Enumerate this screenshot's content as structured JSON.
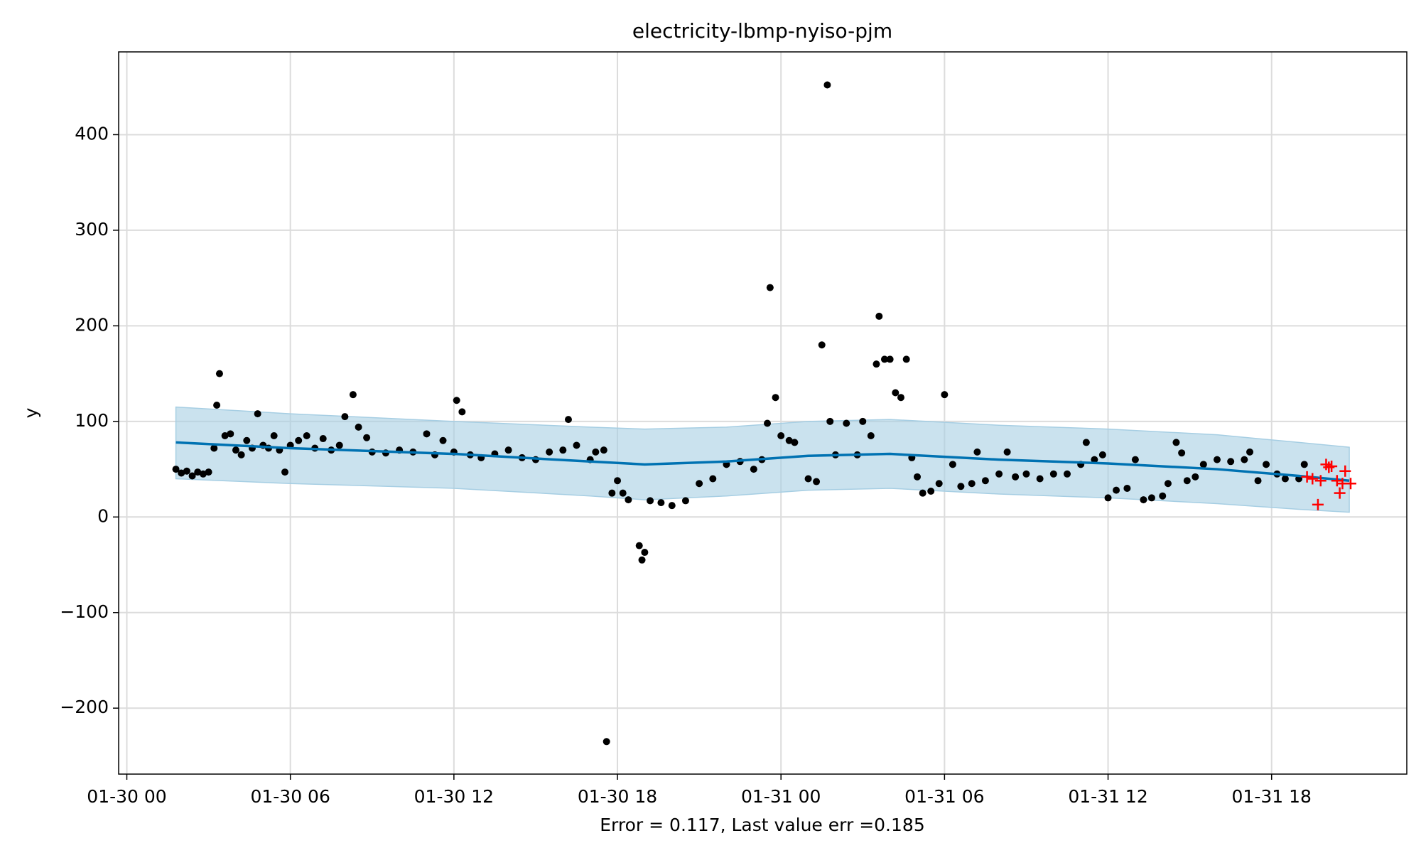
{
  "chart_data": {
    "type": "scatter",
    "title": "electricity-lbmp-nyiso-pjm",
    "xlabel": "Error = 0.117, Last value err =0.185",
    "ylabel": "y",
    "grid": true,
    "xlim": [
      -0.3,
      46.96
    ],
    "ylim": [
      -269,
      486.6
    ],
    "xticks": [
      {
        "value": 0,
        "label": "01-30 00"
      },
      {
        "value": 6,
        "label": "01-30 06"
      },
      {
        "value": 12,
        "label": "01-30 12"
      },
      {
        "value": 18,
        "label": "01-30 18"
      },
      {
        "value": 24,
        "label": "01-31 00"
      },
      {
        "value": 30,
        "label": "01-31 06"
      },
      {
        "value": 36,
        "label": "01-31 12"
      },
      {
        "value": 42,
        "label": "01-31 18"
      }
    ],
    "yticks": [
      {
        "value": -200,
        "label": "−200"
      },
      {
        "value": -100,
        "label": "−100"
      },
      0,
      100,
      200,
      300,
      400
    ],
    "interval": {
      "color": "#a6cee3",
      "x": [
        1.8,
        6,
        12,
        17,
        19,
        22,
        25,
        28,
        32,
        36,
        40,
        43,
        44.85
      ],
      "upper": [
        115,
        108,
        100,
        94,
        92,
        94,
        100,
        102,
        96,
        92,
        86,
        78,
        73
      ],
      "lower": [
        40,
        35,
        30,
        22,
        18,
        22,
        28,
        30,
        24,
        20,
        14,
        8,
        5
      ]
    },
    "forecast": {
      "color": "#0072b2",
      "x": [
        1.8,
        6,
        12,
        17,
        19,
        22,
        25,
        28,
        32,
        36,
        40,
        43,
        44.85
      ],
      "values": [
        78,
        72,
        66,
        58,
        55,
        58,
        64,
        66,
        60,
        56,
        50,
        43,
        38
      ]
    },
    "points": {
      "color": "#000000",
      "x": [
        1.8,
        2.0,
        2.2,
        2.4,
        2.6,
        2.8,
        3.0,
        3.2,
        3.3,
        3.4,
        3.6,
        3.8,
        4.0,
        4.2,
        4.4,
        4.6,
        4.8,
        5.0,
        5.2,
        5.4,
        5.6,
        5.8,
        6.0,
        6.3,
        6.6,
        6.9,
        7.2,
        7.5,
        7.8,
        8.0,
        8.3,
        8.5,
        8.8,
        9.0,
        9.5,
        10.0,
        10.5,
        11.0,
        11.3,
        11.6,
        12.0,
        12.1,
        12.3,
        12.6,
        13.0,
        13.5,
        14.0,
        14.5,
        15.0,
        15.5,
        16.0,
        16.2,
        16.5,
        17.0,
        17.2,
        17.5,
        17.6,
        17.8,
        18.0,
        18.2,
        18.4,
        18.8,
        18.9,
        19.0,
        19.2,
        19.6,
        20.0,
        20.5,
        21.0,
        21.5,
        22.0,
        22.5,
        23.0,
        23.3,
        23.5,
        23.6,
        23.8,
        24.0,
        24.3,
        24.5,
        25.0,
        25.3,
        25.5,
        25.7,
        25.8,
        26.0,
        26.4,
        26.8,
        27.0,
        27.3,
        27.5,
        27.6,
        27.8,
        28.0,
        28.2,
        28.4,
        28.6,
        28.8,
        29.0,
        29.2,
        29.5,
        29.8,
        30.0,
        30.3,
        30.6,
        31.0,
        31.2,
        31.5,
        32.0,
        32.3,
        32.6,
        33.0,
        33.5,
        34.0,
        34.5,
        35.0,
        35.2,
        35.5,
        35.8,
        36.0,
        36.3,
        36.7,
        37.0,
        37.3,
        37.6,
        38.0,
        38.2,
        38.5,
        38.7,
        38.9,
        39.2,
        39.5,
        40.0,
        40.5,
        41.0,
        41.2,
        41.5,
        41.8,
        42.2,
        42.5,
        43.0,
        43.2
      ],
      "values": [
        50,
        46,
        48,
        43,
        47,
        45,
        47,
        72,
        117,
        150,
        85,
        87,
        70,
        65,
        80,
        72,
        108,
        75,
        72,
        85,
        70,
        47,
        75,
        80,
        85,
        72,
        82,
        70,
        75,
        105,
        128,
        94,
        83,
        68,
        67,
        70,
        68,
        87,
        65,
        80,
        68,
        122,
        110,
        65,
        62,
        66,
        70,
        62,
        60,
        68,
        70,
        102,
        75,
        60,
        68,
        70,
        -235,
        25,
        38,
        25,
        18,
        -30,
        -45,
        -37,
        17,
        15,
        12,
        17,
        35,
        40,
        55,
        58,
        50,
        60,
        98,
        240,
        125,
        85,
        80,
        78,
        40,
        37,
        180,
        452,
        100,
        65,
        98,
        65,
        100,
        85,
        160,
        210,
        165,
        165,
        130,
        125,
        165,
        62,
        42,
        25,
        27,
        35,
        128,
        55,
        32,
        35,
        68,
        38,
        45,
        68,
        42,
        45,
        40,
        45,
        45,
        55,
        78,
        60,
        65,
        20,
        28,
        30,
        60,
        18,
        20,
        22,
        35,
        78,
        67,
        38,
        42,
        55,
        60,
        58,
        60,
        68,
        38,
        55,
        45,
        40,
        40,
        55
      ]
    },
    "forecast_points": {
      "color": "#ff0000",
      "x": [
        43.3,
        43.5,
        43.7,
        43.8,
        44.0,
        44.1,
        44.2,
        44.4,
        44.5,
        44.6,
        44.7,
        44.9
      ],
      "values": [
        42,
        40,
        13,
        38,
        55,
        52,
        53,
        38,
        25,
        35,
        48,
        35
      ]
    }
  }
}
